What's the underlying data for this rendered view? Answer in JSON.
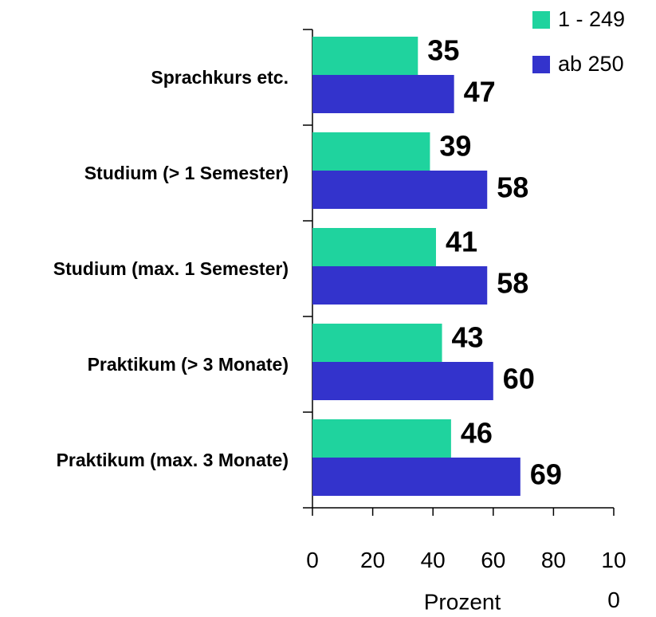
{
  "chart_data": {
    "type": "barh",
    "categories": [
      "Sprachkurs etc.",
      "Studium (> 1 Semester)",
      "Studium (max. 1 Semester)",
      "Praktikum (> 3 Monate)",
      "Praktikum (max. 3 Monate)"
    ],
    "series": [
      {
        "name": "1 - 249",
        "color": "#1fd39e",
        "values": [
          35,
          39,
          41,
          43,
          46
        ]
      },
      {
        "name": "ab 250",
        "color": "#3333cc",
        "values": [
          47,
          58,
          58,
          60,
          69
        ]
      }
    ],
    "xlabel": "Prozent",
    "xlim": [
      0,
      100
    ],
    "xticks": [
      0,
      20,
      40,
      60,
      80,
      100
    ],
    "legend": "top-right",
    "grid": false
  }
}
